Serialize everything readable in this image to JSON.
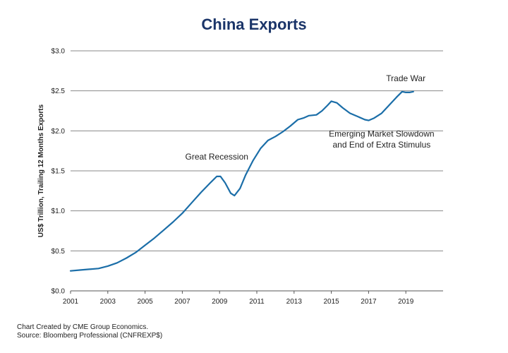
{
  "chart_data": {
    "type": "line",
    "title": "China Exports",
    "xlabel": "",
    "ylabel": "US$ Trillion, Trailing 12 Months Exports",
    "xlim": [
      2001,
      2021
    ],
    "ylim": [
      0,
      3.0
    ],
    "x_ticks": [
      2001,
      2003,
      2005,
      2007,
      2009,
      2011,
      2013,
      2015,
      2017,
      2019
    ],
    "y_ticks": [
      0,
      0.5,
      1.0,
      1.5,
      2.0,
      2.5,
      3.0
    ],
    "y_tick_labels": [
      "$0.0",
      "$0.5",
      "$1.0",
      "$1.5",
      "$2.0",
      "$2.5",
      "$3.0"
    ],
    "grid": true,
    "series": [
      {
        "name": "China Exports",
        "color": "#1b6ea8",
        "x": [
          2001.0,
          2001.5,
          2002.0,
          2002.5,
          2003.0,
          2003.5,
          2004.0,
          2004.5,
          2005.0,
          2005.5,
          2006.0,
          2006.5,
          2007.0,
          2007.5,
          2008.0,
          2008.5,
          2008.85,
          2009.05,
          2009.3,
          2009.6,
          2009.8,
          2010.1,
          2010.4,
          2010.8,
          2011.2,
          2011.6,
          2012.0,
          2012.4,
          2012.8,
          2013.2,
          2013.5,
          2013.8,
          2014.2,
          2014.5,
          2014.8,
          2015.0,
          2015.3,
          2015.6,
          2016.0,
          2016.4,
          2016.8,
          2017.0,
          2017.3,
          2017.7,
          2018.1,
          2018.5,
          2018.8,
          2019.0,
          2019.2,
          2019.4
        ],
        "values": [
          0.25,
          0.26,
          0.27,
          0.28,
          0.31,
          0.35,
          0.41,
          0.48,
          0.57,
          0.66,
          0.76,
          0.86,
          0.97,
          1.1,
          1.23,
          1.35,
          1.43,
          1.43,
          1.35,
          1.22,
          1.19,
          1.28,
          1.45,
          1.63,
          1.78,
          1.88,
          1.93,
          1.99,
          2.06,
          2.14,
          2.16,
          2.19,
          2.2,
          2.25,
          2.32,
          2.37,
          2.35,
          2.29,
          2.22,
          2.18,
          2.14,
          2.13,
          2.16,
          2.22,
          2.32,
          2.42,
          2.49,
          2.48,
          2.48,
          2.49
        ]
      }
    ],
    "annotations": [
      {
        "text": "Trade War",
        "x": 2019.0,
        "y": 2.62
      },
      {
        "text": "Great Recession",
        "x": 2008.85,
        "y": 1.64
      },
      {
        "text": "Emerging Market Slowdown",
        "x": 2017.7,
        "y": 1.93
      },
      {
        "text": "and End of Extra Stimulus",
        "x": 2017.7,
        "y": 1.79
      }
    ]
  },
  "footer": {
    "line1": "Chart Created by CME Group Economics.",
    "line2": "Source:  Bloomberg Professional (CNFREXP$)"
  },
  "colors": {
    "title": "#1b3569",
    "line": "#1b6ea8",
    "grid": "#888888"
  }
}
